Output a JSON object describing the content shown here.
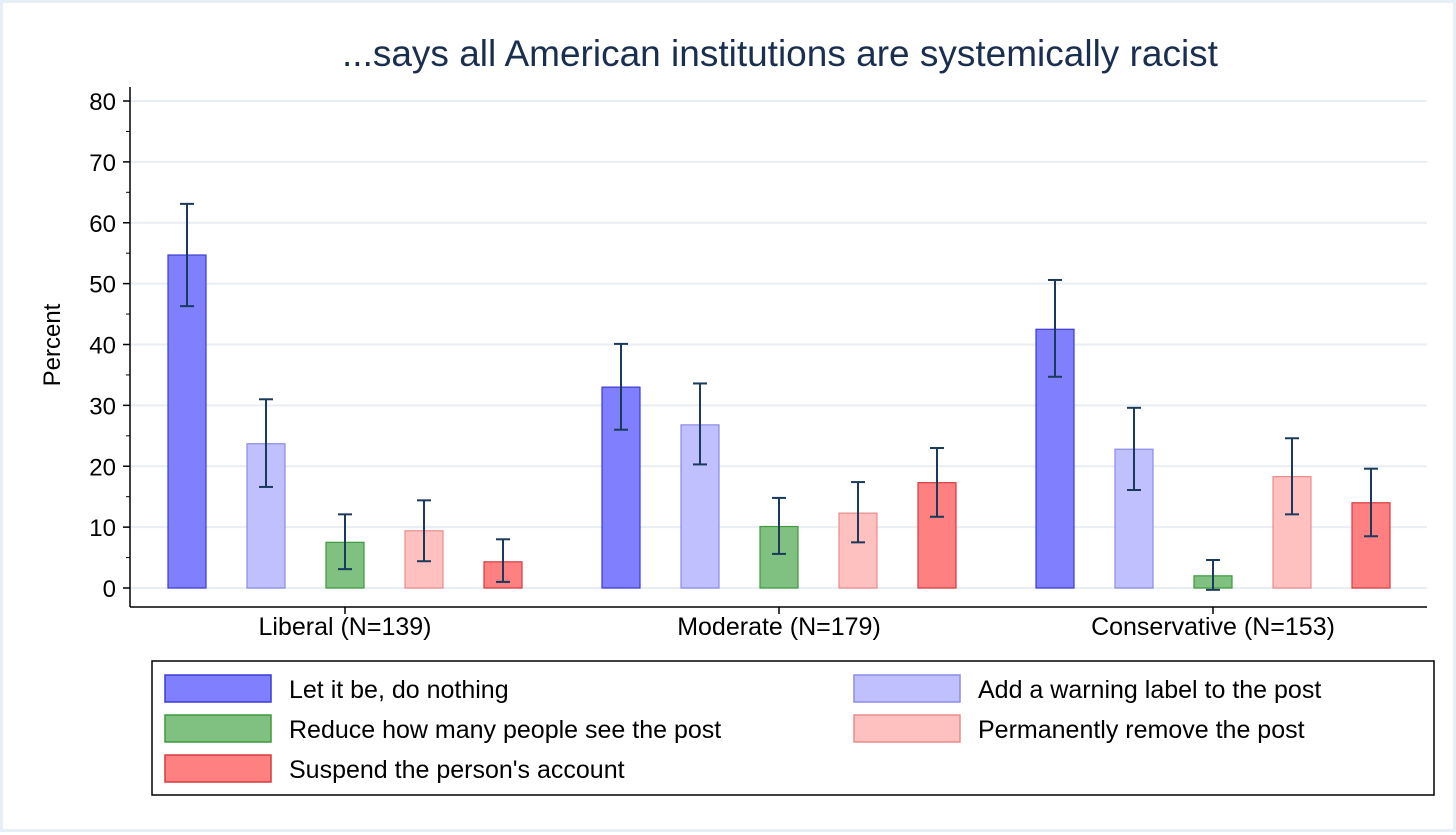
{
  "chart_data": {
    "type": "bar",
    "title": "...says all American institutions are systemically racist",
    "ylabel": "Percent",
    "xlabel": "",
    "ylim": [
      0,
      80
    ],
    "yticks": [
      0,
      10,
      20,
      30,
      40,
      50,
      60,
      70,
      80
    ],
    "grid": true,
    "legend_position": "bottom",
    "categories": [
      "Liberal (N=139)",
      "Moderate (N=179)",
      "Conservative (N=153)"
    ],
    "series": [
      {
        "name": "Let it be, do nothing",
        "color": "#8080ff",
        "edge": "#3b3bd6",
        "values": [
          54.7,
          33.0,
          42.5
        ],
        "ci_low": [
          46.3,
          26.0,
          34.7
        ],
        "ci_high": [
          63.1,
          40.1,
          50.6
        ]
      },
      {
        "name": "Add a warning label to the post",
        "color": "#c0c0ff",
        "edge": "#8c8ce8",
        "values": [
          23.7,
          26.8,
          22.8
        ],
        "ci_low": [
          16.6,
          20.3,
          16.1
        ],
        "ci_high": [
          31.0,
          33.6,
          29.6
        ]
      },
      {
        "name": "Reduce how many people see the post",
        "color": "#80c080",
        "edge": "#3c9a3c",
        "values": [
          7.5,
          10.1,
          2.0
        ],
        "ci_low": [
          3.1,
          5.6,
          -0.3
        ],
        "ci_high": [
          12.1,
          14.8,
          4.6
        ]
      },
      {
        "name": "Permanently remove the post",
        "color": "#ffc0c0",
        "edge": "#e88c8c",
        "values": [
          9.4,
          12.3,
          18.3
        ],
        "ci_low": [
          4.4,
          7.5,
          12.1
        ],
        "ci_high": [
          14.4,
          17.4,
          24.6
        ]
      },
      {
        "name": "Suspend the person's account",
        "color": "#ff8080",
        "edge": "#d63b3b",
        "values": [
          4.3,
          17.3,
          14.0
        ],
        "ci_low": [
          1.0,
          11.7,
          8.5
        ],
        "ci_high": [
          8.0,
          23.0,
          19.6
        ]
      }
    ],
    "legend_rows": [
      [
        "Let it be, do nothing",
        "Add a warning label to the post"
      ],
      [
        "Reduce how many people see the post",
        "Permanently remove the post"
      ],
      [
        "Suspend the person's account"
      ]
    ]
  }
}
